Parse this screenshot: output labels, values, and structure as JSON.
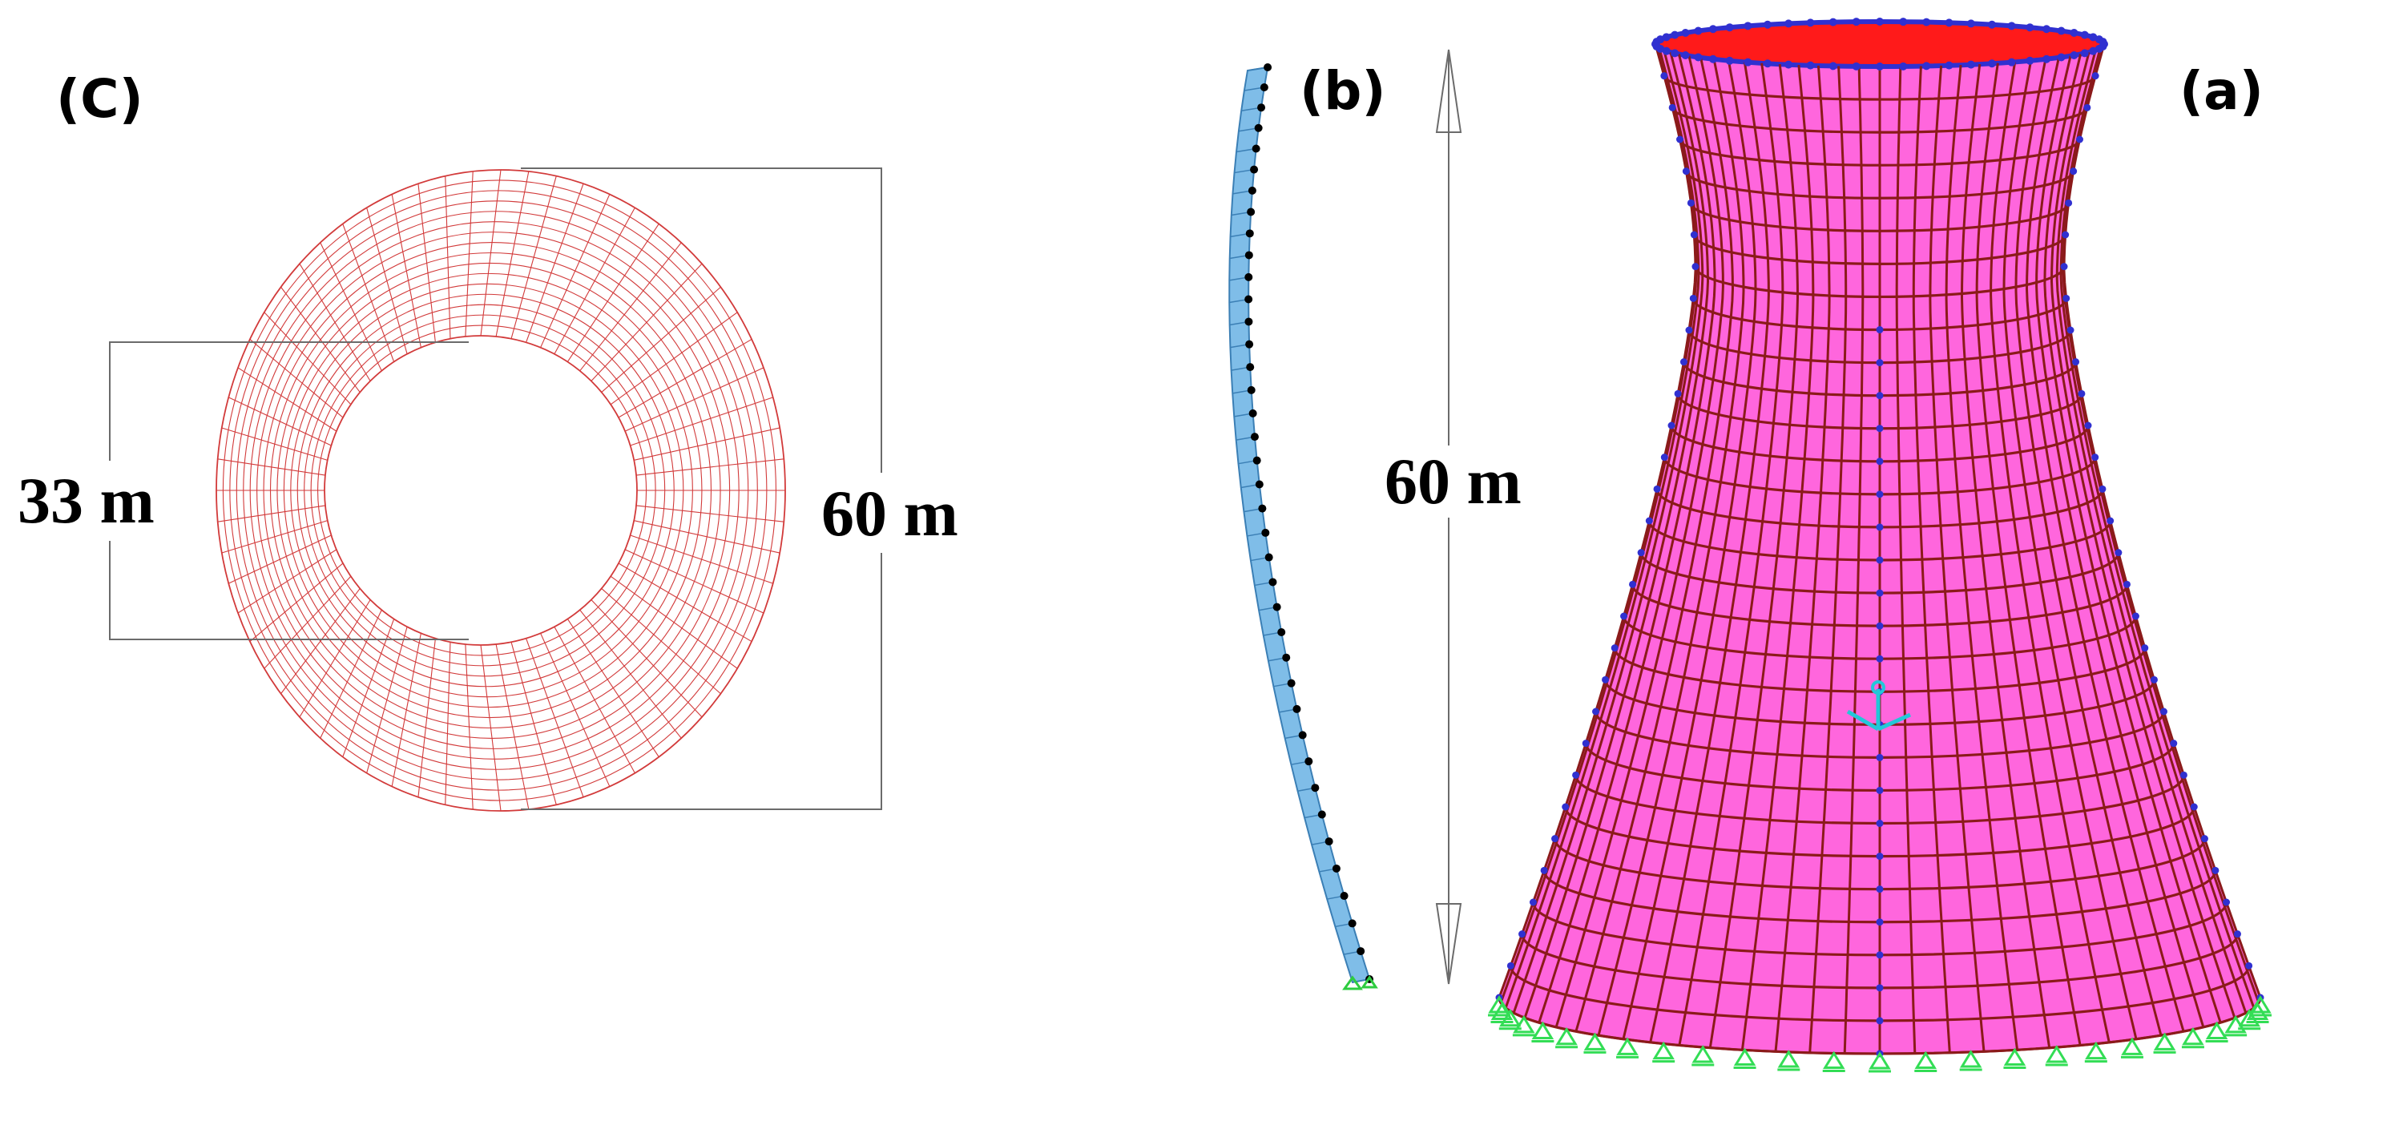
{
  "panels": {
    "c": {
      "label": "(C)",
      "inner_diameter_label": "33 m",
      "outer_diameter_label": "60 m",
      "mesh_color": "#d23a3a",
      "radial_divisions": 64,
      "ring_count": 16
    },
    "b": {
      "label": "(b)",
      "height_label": "60 m",
      "strip_color": "#7fbde8",
      "node_color": "#000000",
      "support_color": "#2ecc40",
      "node_count": 38
    },
    "a": {
      "label": "(a)",
      "shell_color": "#ff66dd",
      "grid_color": "#8b1a1a",
      "rim_inner_color": "#ff1a1a",
      "rim_node_color": "#3030d0",
      "support_color": "#33dd55",
      "axis_color": "#22c8d8"
    }
  }
}
